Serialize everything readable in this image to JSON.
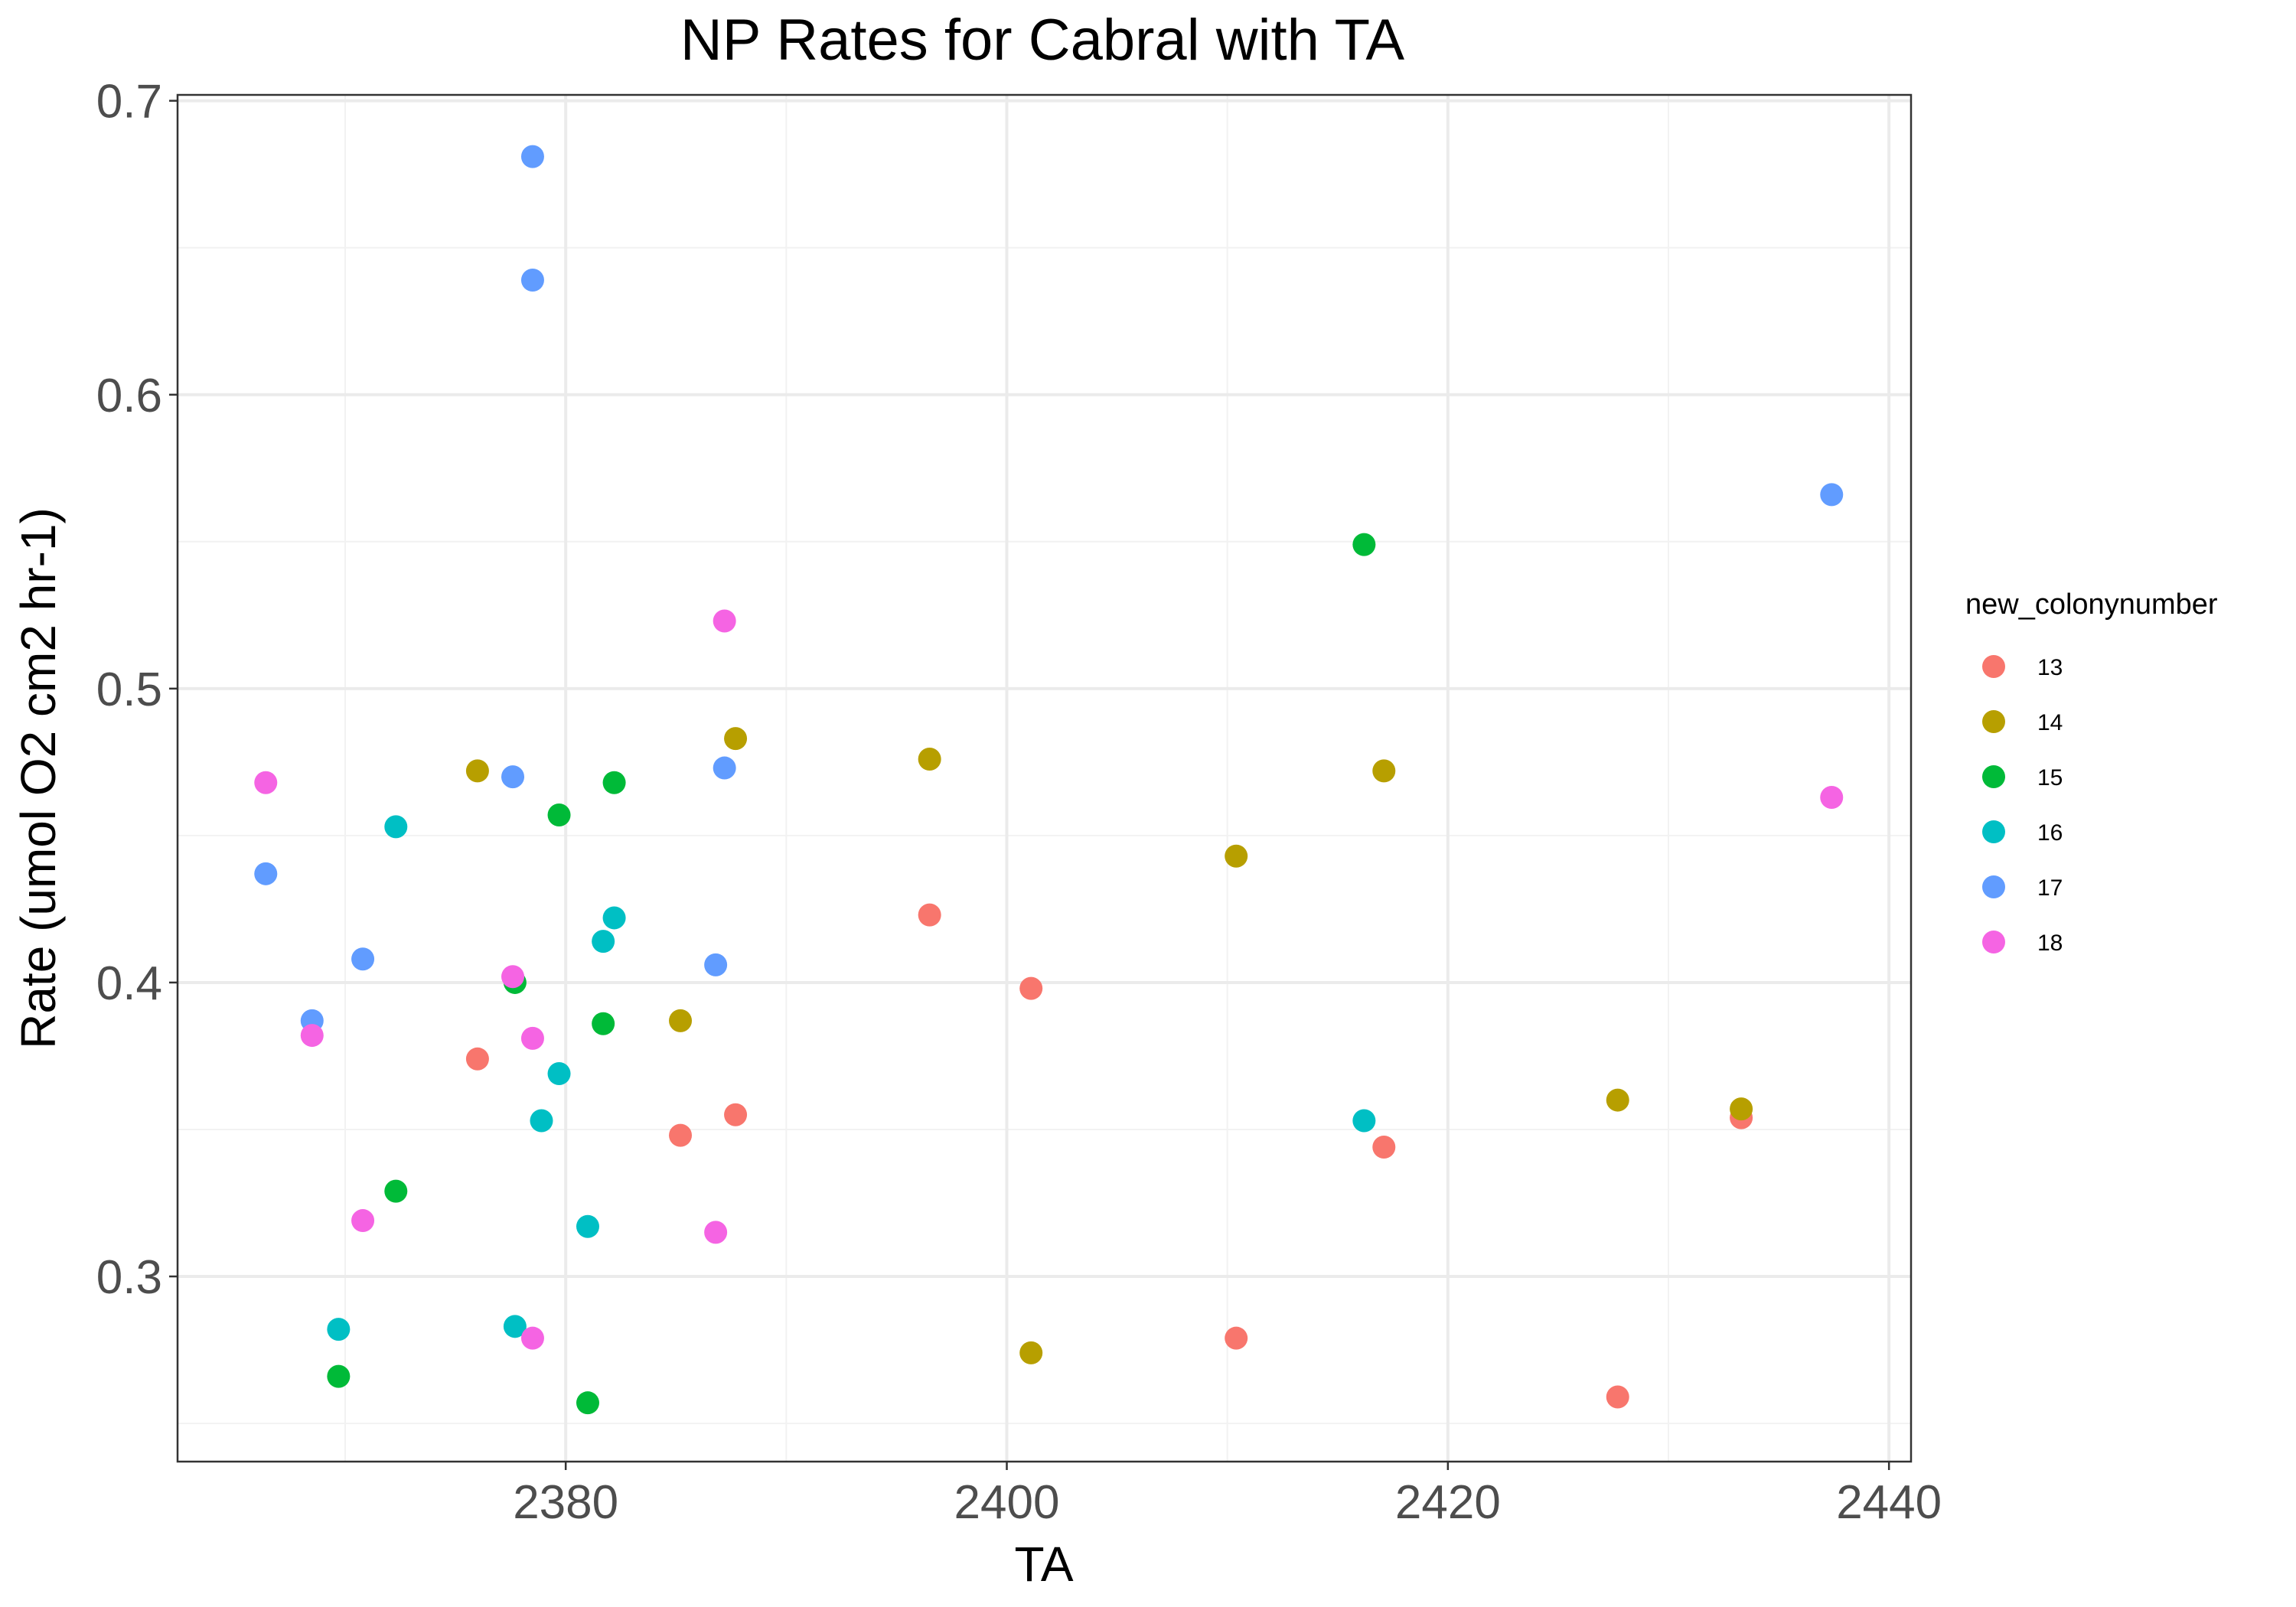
{
  "chart_data": {
    "type": "scatter",
    "title": "NP Rates for Cabral with TA",
    "xlabel": "TA",
    "ylabel": "Rate (umol O2 cm2 hr-1)",
    "xlim": [
      2362.4,
      2441.0
    ],
    "ylim": [
      0.237,
      0.702
    ],
    "x_ticks": [
      2380,
      2400,
      2420,
      2440
    ],
    "x_tick_labels": [
      "2380",
      "2400",
      "2420",
      "2440"
    ],
    "y_ticks": [
      0.3,
      0.4,
      0.5,
      0.6,
      0.7
    ],
    "y_tick_labels": [
      "0.3",
      "0.4",
      "0.5",
      "0.6",
      "0.7"
    ],
    "grid": true,
    "legend": {
      "title": "new_colonynumber",
      "placement": "right"
    },
    "series": [
      {
        "name": "13",
        "color": "#F8766D",
        "points": [
          {
            "x": 2376.0,
            "y": 0.374
          },
          {
            "x": 2385.2,
            "y": 0.348
          },
          {
            "x": 2387.7,
            "y": 0.355
          },
          {
            "x": 2396.5,
            "y": 0.423
          },
          {
            "x": 2401.1,
            "y": 0.398
          },
          {
            "x": 2410.4,
            "y": 0.279
          },
          {
            "x": 2417.1,
            "y": 0.344
          },
          {
            "x": 2427.7,
            "y": 0.259
          },
          {
            "x": 2433.3,
            "y": 0.354
          }
        ]
      },
      {
        "name": "14",
        "color": "#B79F00",
        "points": [
          {
            "x": 2376.0,
            "y": 0.472
          },
          {
            "x": 2385.2,
            "y": 0.387
          },
          {
            "x": 2387.7,
            "y": 0.483
          },
          {
            "x": 2396.5,
            "y": 0.476
          },
          {
            "x": 2401.1,
            "y": 0.274
          },
          {
            "x": 2410.4,
            "y": 0.443
          },
          {
            "x": 2417.1,
            "y": 0.472
          },
          {
            "x": 2427.7,
            "y": 0.36
          },
          {
            "x": 2433.3,
            "y": 0.357
          }
        ]
      },
      {
        "name": "15",
        "color": "#00BA38",
        "points": [
          {
            "x": 2369.7,
            "y": 0.266
          },
          {
            "x": 2372.3,
            "y": 0.329
          },
          {
            "x": 2377.7,
            "y": 0.4
          },
          {
            "x": 2379.7,
            "y": 0.457
          },
          {
            "x": 2381.0,
            "y": 0.257
          },
          {
            "x": 2381.7,
            "y": 0.386
          },
          {
            "x": 2382.2,
            "y": 0.468
          },
          {
            "x": 2416.2,
            "y": 0.549
          }
        ]
      },
      {
        "name": "16",
        "color": "#00BFC4",
        "points": [
          {
            "x": 2369.7,
            "y": 0.282
          },
          {
            "x": 2372.3,
            "y": 0.453
          },
          {
            "x": 2377.7,
            "y": 0.283
          },
          {
            "x": 2378.9,
            "y": 0.353
          },
          {
            "x": 2379.7,
            "y": 0.369
          },
          {
            "x": 2381.0,
            "y": 0.317
          },
          {
            "x": 2381.7,
            "y": 0.414
          },
          {
            "x": 2382.2,
            "y": 0.422
          },
          {
            "x": 2416.2,
            "y": 0.353
          }
        ]
      },
      {
        "name": "17",
        "color": "#619CFF",
        "points": [
          {
            "x": 2366.4,
            "y": 0.437
          },
          {
            "x": 2368.5,
            "y": 0.387
          },
          {
            "x": 2370.8,
            "y": 0.408
          },
          {
            "x": 2377.6,
            "y": 0.47
          },
          {
            "x": 2378.5,
            "y": 0.681
          },
          {
            "x": 2378.5,
            "y": 0.639
          },
          {
            "x": 2386.8,
            "y": 0.406
          },
          {
            "x": 2387.2,
            "y": 0.473
          },
          {
            "x": 2437.4,
            "y": 0.566
          }
        ]
      },
      {
        "name": "18",
        "color": "#F564E3",
        "points": [
          {
            "x": 2366.4,
            "y": 0.468
          },
          {
            "x": 2368.5,
            "y": 0.382
          },
          {
            "x": 2370.8,
            "y": 0.319
          },
          {
            "x": 2377.6,
            "y": 0.402
          },
          {
            "x": 2378.5,
            "y": 0.381
          },
          {
            "x": 2378.5,
            "y": 0.279
          },
          {
            "x": 2386.8,
            "y": 0.315
          },
          {
            "x": 2387.2,
            "y": 0.523
          },
          {
            "x": 2437.4,
            "y": 0.463
          }
        ]
      }
    ]
  }
}
